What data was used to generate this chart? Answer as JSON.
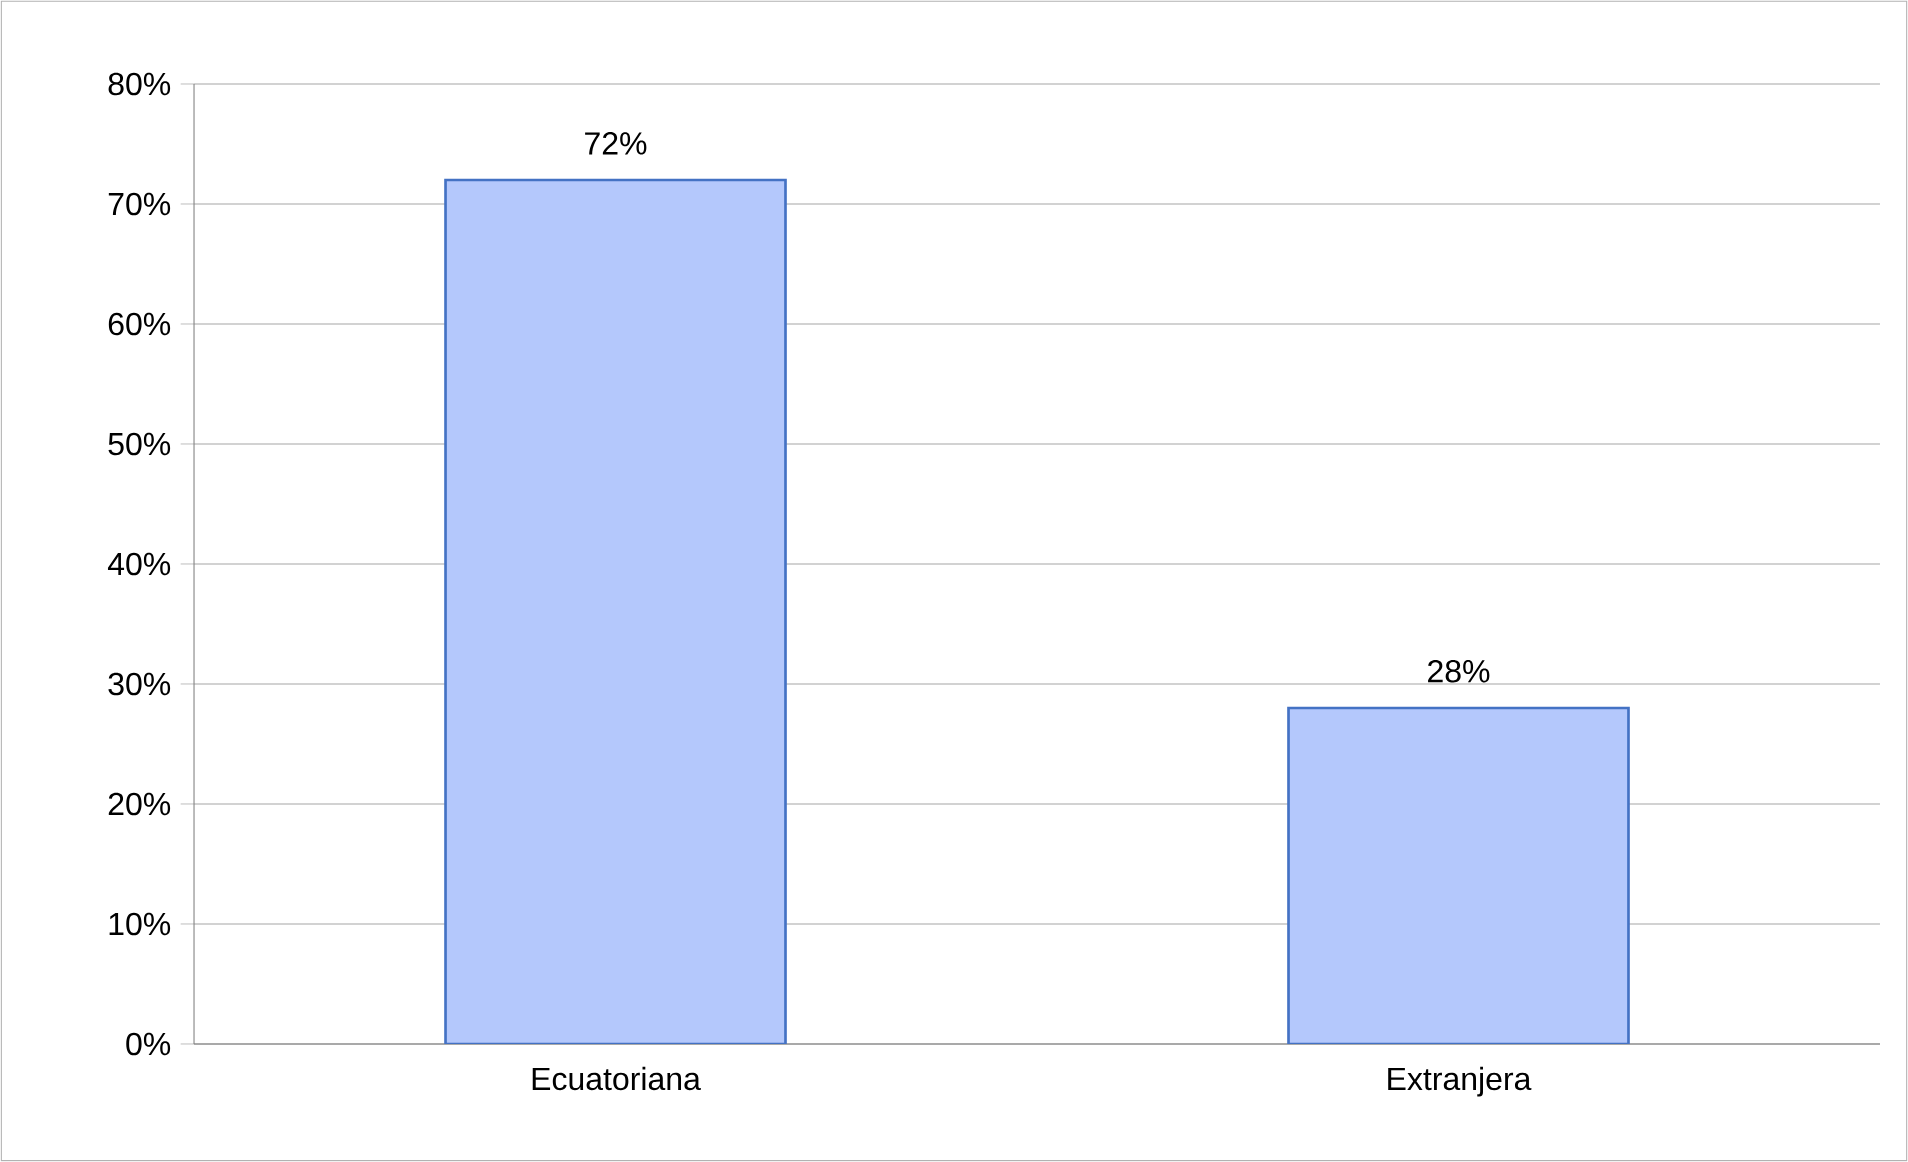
{
  "chart_data": {
    "type": "bar",
    "categories": [
      "Ecuatoriana",
      "Extranjera"
    ],
    "values": [
      72,
      28
    ],
    "value_labels": [
      "72%",
      "28%"
    ],
    "color": "#b4c8fc",
    "ylim": [
      0,
      80
    ],
    "yticks": [
      {
        "value": 0,
        "label": "0%"
      },
      {
        "value": 10,
        "label": "10%"
      },
      {
        "value": 20,
        "label": "20%"
      },
      {
        "value": 30,
        "label": "30%"
      },
      {
        "value": 40,
        "label": "40%"
      },
      {
        "value": 50,
        "label": "50%"
      },
      {
        "value": 60,
        "label": "60%"
      },
      {
        "value": 70,
        "label": "70%"
      },
      {
        "value": 80,
        "label": "80%"
      }
    ],
    "grid": "y"
  }
}
